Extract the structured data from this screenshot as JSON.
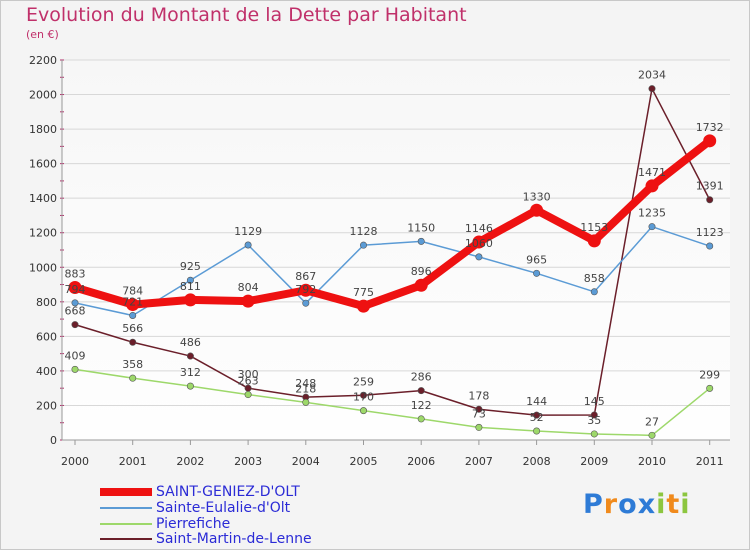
{
  "title": "Evolution du Montant de la Dette par Habitant",
  "unit": "(en €)",
  "logo": "Proxiti",
  "chart_data": {
    "type": "line",
    "title": "Evolution du Montant de la Dette par Habitant",
    "subtitle": "(en €)",
    "xlabel": "",
    "ylabel": "",
    "categories": [
      "2000",
      "2001",
      "2002",
      "2003",
      "2004",
      "2005",
      "2006",
      "2007",
      "2008",
      "2009",
      "2010",
      "2011"
    ],
    "ylim": [
      0,
      2200
    ],
    "yticks": [
      0,
      200,
      400,
      600,
      800,
      1000,
      1200,
      1400,
      1600,
      1800,
      2000,
      2200
    ],
    "grid": "horizontal",
    "legend_position": "bottom-left",
    "series": [
      {
        "name": "Saint-Martin-de-Lenne",
        "color": "#6b1f2a",
        "values": [
          668,
          566,
          486,
          300,
          248,
          259,
          286,
          178,
          144,
          145,
          2034,
          1391
        ]
      },
      {
        "name": "Pierrefiche",
        "color": "#9dd86a",
        "values": [
          409,
          358,
          312,
          263,
          218,
          170,
          122,
          73,
          52,
          35,
          27,
          299
        ]
      },
      {
        "name": "Sainte-Eulalie-d'Olt",
        "color": "#5b9bd5",
        "values": [
          794,
          721,
          925,
          1129,
          792,
          1128,
          1150,
          1060,
          965,
          858,
          1235,
          1123
        ]
      },
      {
        "name": "SAINT-GENIEZ-D'OLT",
        "color": "#ee1111",
        "values": [
          883,
          784,
          811,
          804,
          867,
          775,
          896,
          1146,
          1330,
          1153,
          1471,
          1732
        ]
      }
    ]
  }
}
